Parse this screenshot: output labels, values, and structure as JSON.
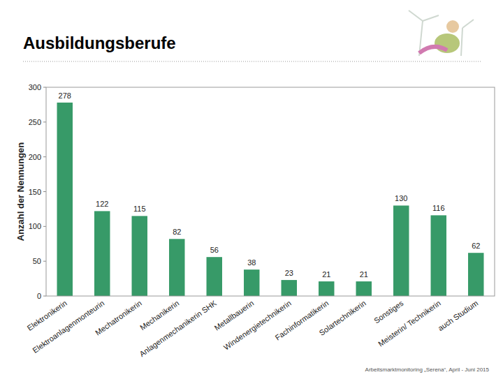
{
  "chart_data": {
    "type": "bar",
    "title": "Ausbildungsberufe",
    "y_label": "Anzahl der Nennungen",
    "source": "Arbeitsmarktmonitoring „Serena“, April - Juni 2015",
    "categories": [
      "Elektronikerin",
      "Elektroanlagenmonteurin",
      "Mechatronikerin",
      "Mechanikerin",
      "Anlagenmechanikerin SHK",
      "Metallbauerin",
      "Windenergietechnikerin",
      "Fachinformatikerin",
      "Solartechnikerin",
      "Sonstiges",
      "Meisterin/ Technikerin",
      "auch Studium"
    ],
    "values": [
      278,
      122,
      115,
      82,
      56,
      38,
      23,
      21,
      21,
      130,
      116,
      62
    ],
    "color": "#379a68",
    "ylim": [
      0,
      300
    ],
    "yticks": [
      0,
      50,
      100,
      150,
      200,
      250,
      300
    ],
    "grid": false,
    "data_labels": true
  }
}
